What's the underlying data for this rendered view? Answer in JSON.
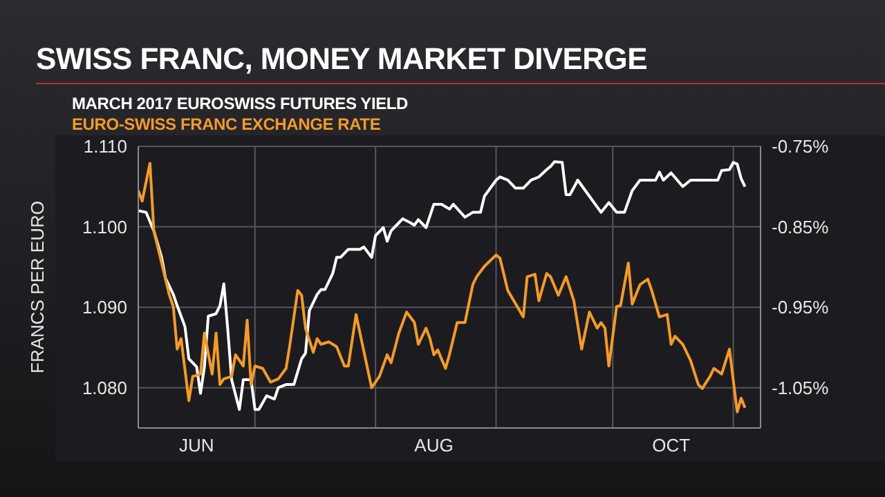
{
  "chart_data": {
    "type": "line",
    "title": "SWISS FRANC, MONEY MARKET DIVERGE",
    "ylabel": "FRANCS PER EURO",
    "legend": "top left",
    "grid": true,
    "marker": "none",
    "line_style": "solid",
    "xlim": [
      "--06-01",
      "--11-08"
    ],
    "xticks": [
      {
        "value": "--06-16",
        "label": "JUN"
      },
      {
        "value": "--07-01",
        "label": null
      },
      {
        "value": "--08-01",
        "label": null
      },
      {
        "value": "--08-16",
        "label": "AUG"
      },
      {
        "value": "--09-01",
        "label": null
      },
      {
        "value": "--10-01",
        "label": null
      },
      {
        "value": "--10-16",
        "label": "OCT"
      },
      {
        "value": "--11-01",
        "label": null
      }
    ],
    "ylim": [
      1.075,
      1.11
    ],
    "yticks": [
      {
        "value": 1.08,
        "label": "1.080"
      },
      {
        "value": 1.09,
        "label": "1.090"
      },
      {
        "value": 1.1,
        "label": "1.100"
      },
      {
        "value": 1.11,
        "label": "1.110"
      }
    ],
    "y2lim": [
      -1.1,
      -0.75
    ],
    "y2ticks": [
      {
        "value": -1.05,
        "label": "-1.05%"
      },
      {
        "value": -0.95,
        "label": "-0.95%"
      },
      {
        "value": -0.85,
        "label": "-0.85%"
      },
      {
        "value": -0.75,
        "label": "-0.75%"
      }
    ],
    "series": [
      {
        "name": "MARCH 2017 EUROSWISS FUTURES YIELD",
        "color": "#ffffff",
        "axis": "y2",
        "x": [
          "--06-01",
          "--06-03",
          "--06-05",
          "--06-07",
          "--06-08",
          "--06-10",
          "--06-11",
          "--06-13",
          "--06-14",
          "--06-16",
          "--06-17",
          "--06-18",
          "--06-19",
          "--06-21",
          "--06-22",
          "--06-23",
          "--06-24",
          "--06-25",
          "--06-27",
          "--06-28",
          "--06-30",
          "--07-01",
          "--07-02",
          "--07-04",
          "--07-06",
          "--07-07",
          "--07-09",
          "--07-11",
          "--07-13",
          "--07-14",
          "--07-15",
          "--07-17",
          "--07-18",
          "--07-19",
          "--07-21",
          "--07-22",
          "--07-23",
          "--07-25",
          "--07-28",
          "--07-29",
          "--07-31",
          "--08-01",
          "--08-03",
          "--08-04",
          "--08-05",
          "--08-07",
          "--08-08",
          "--08-10",
          "--08-11",
          "--08-12",
          "--08-14",
          "--08-16",
          "--08-18",
          "--08-20",
          "--08-21",
          "--08-24",
          "--08-26",
          "--08-28",
          "--08-29",
          "--09-01",
          "--09-02",
          "--09-04",
          "--09-06",
          "--09-08",
          "--09-10",
          "--09-12",
          "--09-14",
          "--09-15",
          "--09-16",
          "--09-18",
          "--09-19",
          "--09-20",
          "--09-22",
          "--09-25",
          "--09-28",
          "--09-30",
          "--10-02",
          "--10-04",
          "--10-06",
          "--10-08",
          "--10-12",
          "--10-13",
          "--10-14",
          "--10-16",
          "--10-19",
          "--10-21",
          "--10-26",
          "--10-28",
          "--10-29",
          "--10-31",
          "--11-01",
          "--11-02",
          "--11-03",
          "--11-04"
        ],
        "values": [
          -0.83,
          -0.832,
          -0.855,
          -0.888,
          -0.914,
          -0.934,
          -0.948,
          -0.974,
          -1.014,
          -1.024,
          -1.057,
          -1.024,
          -0.961,
          -0.958,
          -0.948,
          -0.921,
          -0.977,
          -1.04,
          -1.077,
          -1.04,
          -1.04,
          -1.077,
          -1.077,
          -1.06,
          -1.064,
          -1.05,
          -1.046,
          -1.046,
          -1.014,
          -1.007,
          -0.954,
          -0.934,
          -0.928,
          -0.928,
          -0.908,
          -0.888,
          -0.888,
          -0.878,
          -0.878,
          -0.875,
          -0.888,
          -0.861,
          -0.851,
          -0.868,
          -0.855,
          -0.845,
          -0.84,
          -0.845,
          -0.848,
          -0.841,
          -0.851,
          -0.822,
          -0.822,
          -0.828,
          -0.822,
          -0.838,
          -0.832,
          -0.832,
          -0.812,
          -0.792,
          -0.788,
          -0.792,
          -0.802,
          -0.802,
          -0.792,
          -0.788,
          -0.779,
          -0.775,
          -0.769,
          -0.77,
          -0.81,
          -0.81,
          -0.792,
          -0.812,
          -0.832,
          -0.82,
          -0.832,
          -0.832,
          -0.805,
          -0.792,
          -0.792,
          -0.782,
          -0.792,
          -0.783,
          -0.8,
          -0.792,
          -0.792,
          -0.792,
          -0.78,
          -0.779,
          -0.77,
          -0.772,
          -0.79,
          -0.8
        ]
      },
      {
        "name": "EURO-SWISS FRANC EXCHANGE RATE",
        "color": "#f39a2b",
        "x": [
          "--06-01",
          "--06-02",
          "--06-04",
          "--06-05",
          "--06-07",
          "--06-09",
          "--06-10",
          "--06-11",
          "--06-12",
          "--06-14",
          "--06-15",
          "--06-17",
          "--06-18",
          "--06-20",
          "--06-21",
          "--06-22",
          "--06-23",
          "--06-25",
          "--06-26",
          "--06-28",
          "--06-29",
          "--06-30",
          "--07-01",
          "--07-03",
          "--07-05",
          "--07-07",
          "--07-09",
          "--07-10",
          "--07-12",
          "--07-13",
          "--07-14",
          "--07-16",
          "--07-17",
          "--07-18",
          "--07-20",
          "--07-22",
          "--07-24",
          "--07-25",
          "--07-27",
          "--07-28",
          "--07-31",
          "--08-02",
          "--08-04",
          "--08-05",
          "--08-07",
          "--08-09",
          "--08-11",
          "--08-12",
          "--08-14",
          "--08-15",
          "--08-16",
          "--08-17",
          "--08-19",
          "--08-20",
          "--08-22",
          "--08-24",
          "--08-26",
          "--08-27",
          "--08-29",
          "--09-01",
          "--09-02",
          "--09-04",
          "--09-08",
          "--09-09",
          "--09-11",
          "--09-12",
          "--09-14",
          "--09-15",
          "--09-17",
          "--09-19",
          "--09-21",
          "--09-23",
          "--09-25",
          "--09-27",
          "--09-28",
          "--09-29",
          "--09-30",
          "--10-02",
          "--10-03",
          "--10-05",
          "--10-06",
          "--10-08",
          "--10-10",
          "--10-11",
          "--10-13",
          "--10-15",
          "--10-16",
          "--10-17",
          "--10-19",
          "--10-21",
          "--10-23",
          "--10-24",
          "--10-26",
          "--10-27",
          "--10-29",
          "--10-31",
          "--11-02",
          "--11-03",
          "--11-04"
        ],
        "values": [
          1.1045,
          1.1032,
          1.1079,
          1.0995,
          1.0955,
          1.0915,
          1.0901,
          1.0848,
          1.0861,
          1.0784,
          1.0814,
          1.0817,
          1.0868,
          1.0817,
          1.0868,
          1.0804,
          1.0811,
          1.0814,
          1.0841,
          1.0827,
          1.0884,
          1.0804,
          1.0827,
          1.0824,
          1.0807,
          1.0811,
          1.0824,
          1.0854,
          1.0921,
          1.0915,
          1.0874,
          1.0844,
          1.0861,
          1.0854,
          1.0857,
          1.0851,
          1.0827,
          1.0827,
          1.0891,
          1.0868,
          1.08,
          1.0814,
          1.0841,
          1.0831,
          1.0868,
          1.0894,
          1.0881,
          1.0854,
          1.0874,
          1.0861,
          1.0841,
          1.0847,
          1.0824,
          1.0841,
          1.0881,
          1.0881,
          1.0928,
          1.0938,
          1.0951,
          1.0965,
          1.0961,
          1.0921,
          1.0888,
          1.0938,
          1.0941,
          1.0908,
          1.0942,
          1.0938,
          1.0915,
          1.0938,
          1.0908,
          1.0848,
          1.0894,
          1.0874,
          1.0881,
          1.0874,
          1.0827,
          1.0901,
          1.0902,
          1.0955,
          1.0904,
          1.0928,
          1.0935,
          1.0921,
          1.0888,
          1.0891,
          1.0854,
          1.0864,
          1.0854,
          1.0834,
          1.0804,
          1.0799,
          1.0814,
          1.0824,
          1.0817,
          1.0848,
          1.077,
          1.0787,
          1.0775
        ]
      }
    ]
  }
}
